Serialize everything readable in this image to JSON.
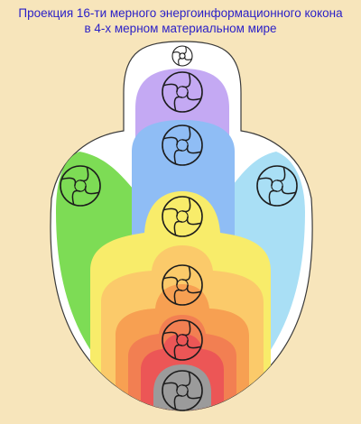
{
  "title": {
    "line1": "Проекция 16-ти мерного энергоинформационного кокона",
    "line2": "в 4-х мерном материальном мире"
  },
  "colors": {
    "background": "#f7e5bb",
    "title_text": "#2a1fc7",
    "cocoon": "#ffffff",
    "outline": "#3a3a3a",
    "violet": "#c4a9f3",
    "blue": "#8fbdf5",
    "left_green": "#7ddc55",
    "right_cyan": "#a9dff5",
    "yellow": "#f8ec6a",
    "light_orange": "#fbca6a",
    "orange": "#f7a052",
    "red_orange": "#f27f52",
    "red": "#ec5656",
    "grey": "#9b9b9b"
  },
  "chakras": [
    {
      "name": "crown-top-chakra"
    },
    {
      "name": "violet-chakra"
    },
    {
      "name": "blue-chakra"
    },
    {
      "name": "left-green-chakra"
    },
    {
      "name": "right-cyan-chakra"
    },
    {
      "name": "yellow-chakra"
    },
    {
      "name": "orange-chakra"
    },
    {
      "name": "red-chakra"
    },
    {
      "name": "base-grey-chakra"
    }
  ],
  "icons": {
    "chakra": "swirl-wheel-icon"
  }
}
